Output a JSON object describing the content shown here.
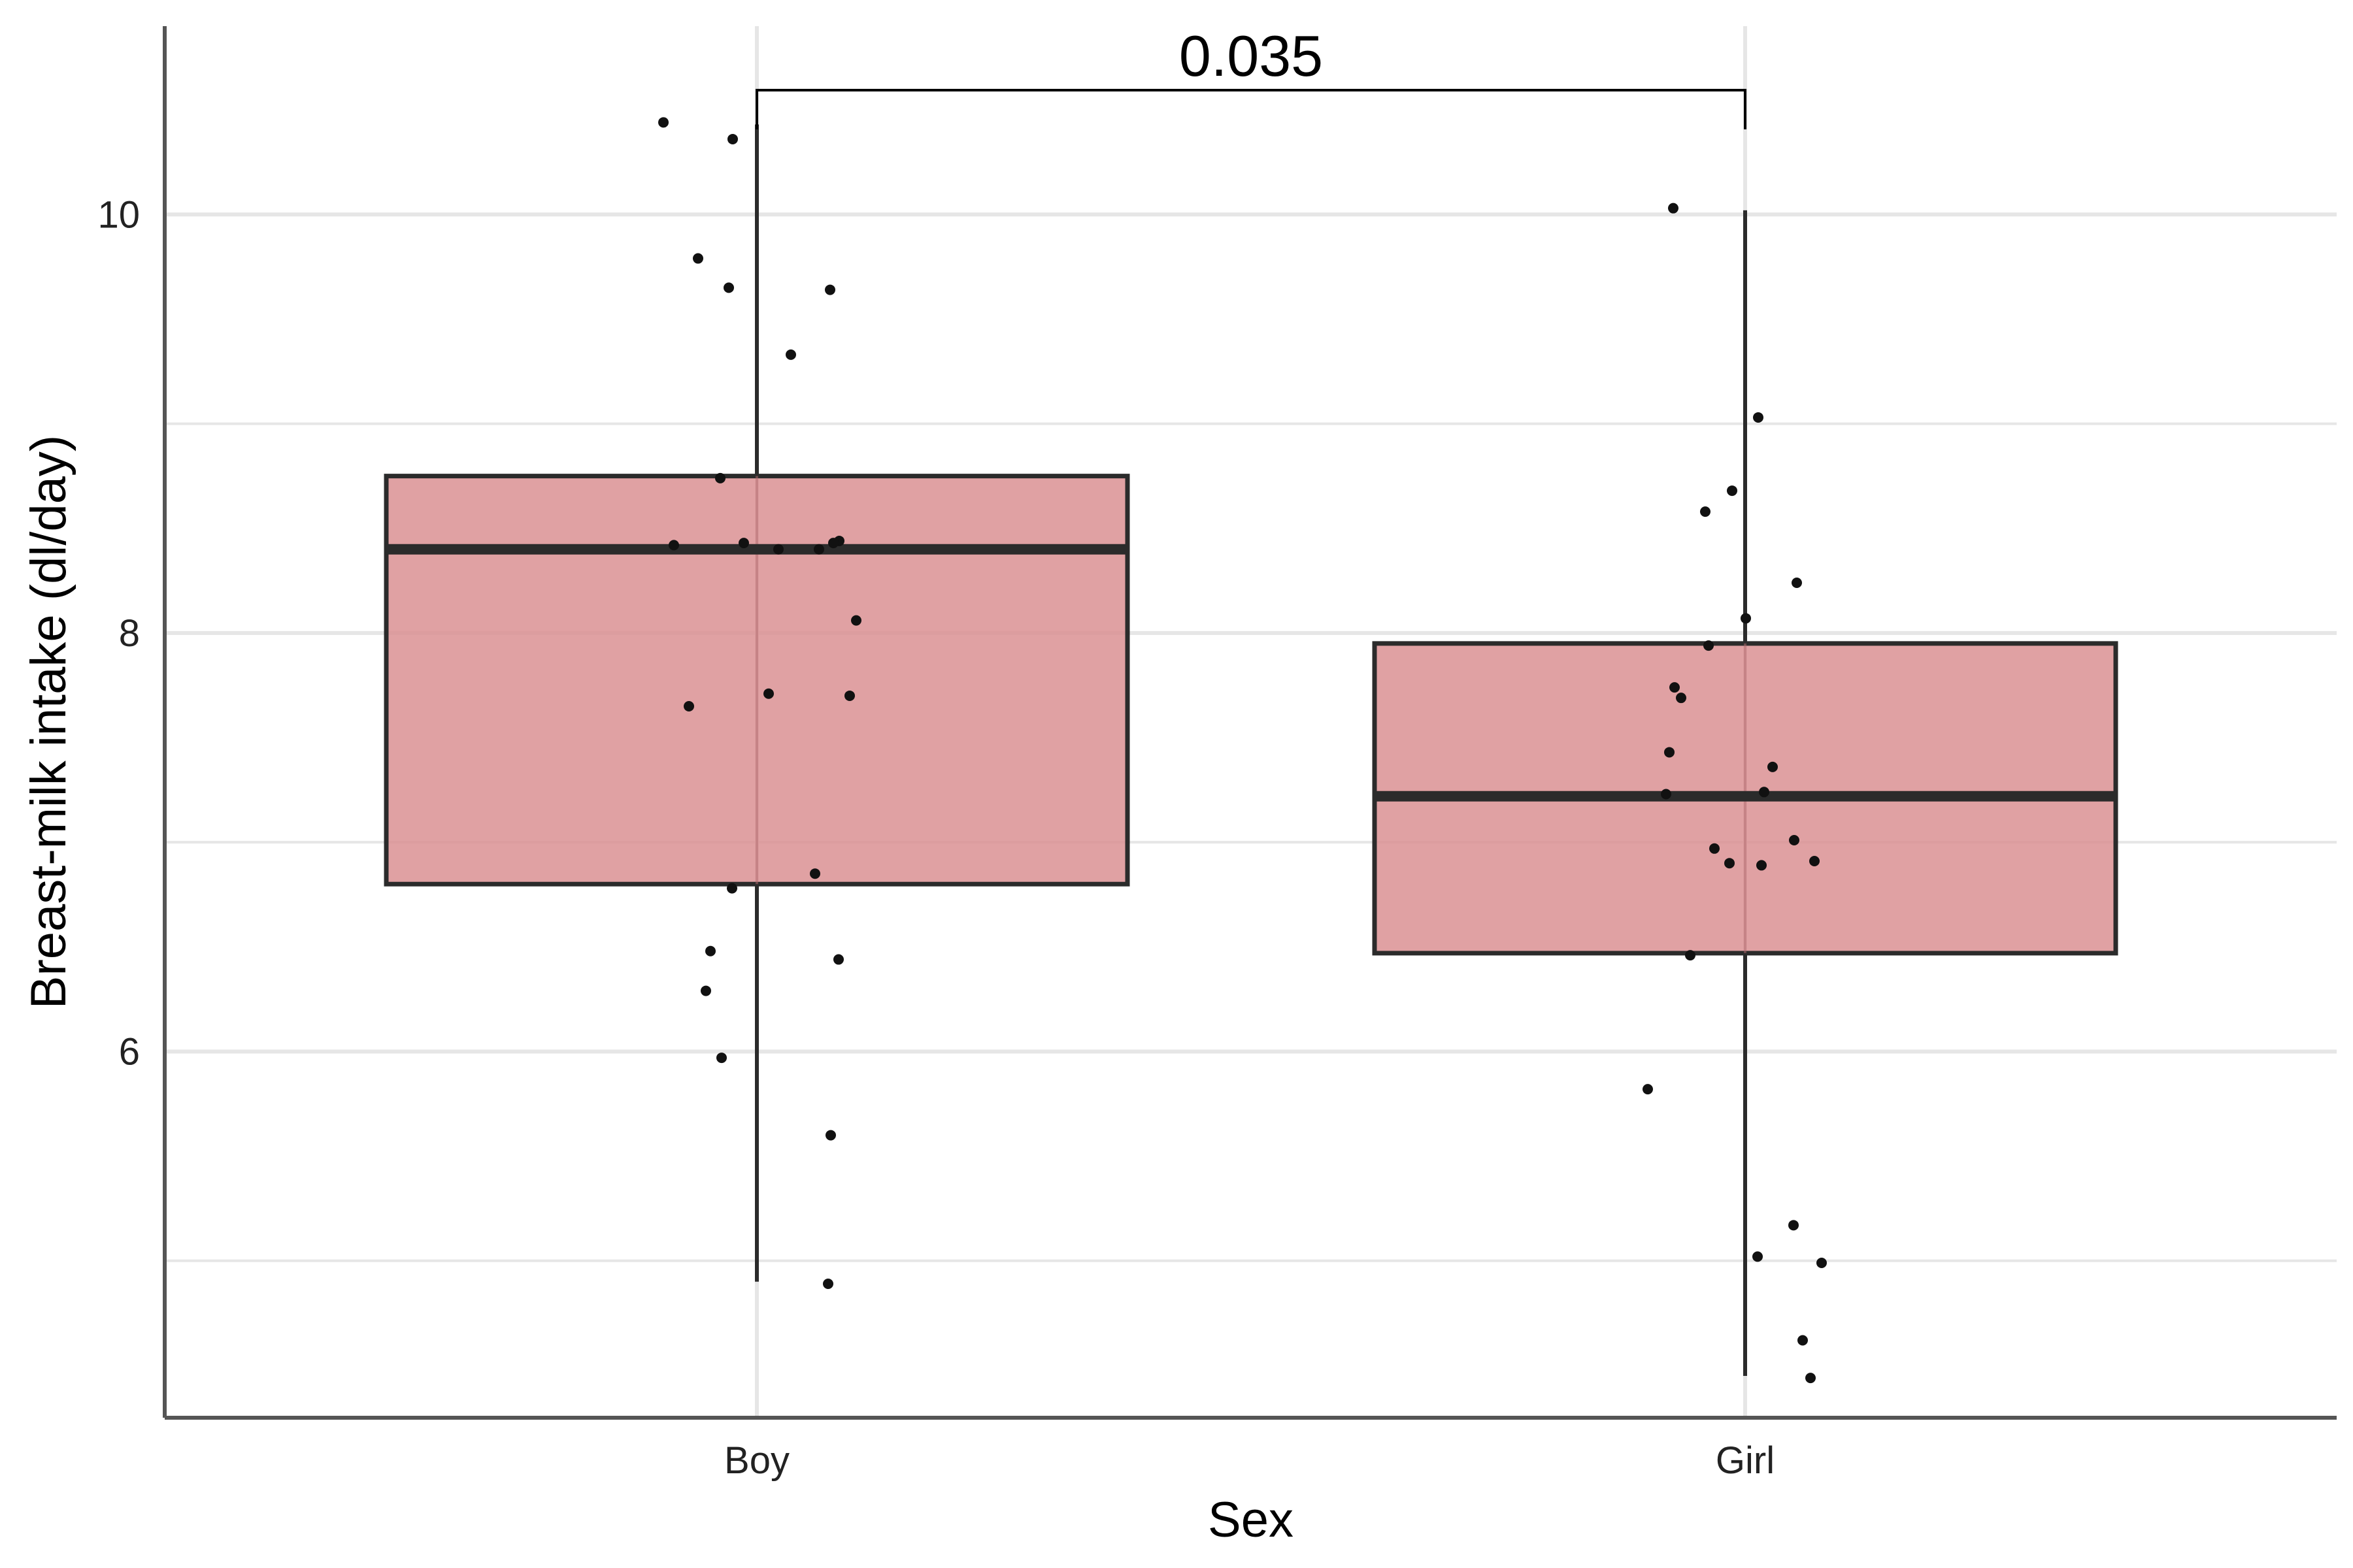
{
  "chart_data": {
    "type": "boxplot",
    "xlabel": "Sex",
    "ylabel": "Breast-milk intake (dl/day)",
    "categories": [
      "Boy",
      "Girl"
    ],
    "ylim": [
      4.25,
      10.9
    ],
    "y_major_ticks": [
      6,
      8,
      10
    ],
    "y_minor_ticks": [
      5,
      7,
      9
    ],
    "grid": true,
    "colors": {
      "box_fill": "#d98c8f",
      "box_stroke": "#2b2b2b",
      "point": "#111111",
      "grid": "#e6e6e6",
      "axis": "#555555"
    },
    "boxes": [
      {
        "category": "Boy",
        "lower_whisker": 4.9,
        "q1": 6.8,
        "median": 8.4,
        "q3": 8.75,
        "upper_whisker": 10.43
      },
      {
        "category": "Girl",
        "lower_whisker": 4.45,
        "q1": 6.47,
        "median": 7.22,
        "q3": 7.95,
        "upper_whisker": 10.02
      }
    ],
    "points": [
      {
        "category": "Boy",
        "values": [
          10.44,
          10.36,
          9.79,
          9.65,
          9.64,
          9.33,
          8.74,
          8.42,
          8.43,
          8.4,
          8.4,
          8.44,
          8.43,
          8.06,
          7.71,
          7.65,
          7.7,
          6.85,
          6.78,
          6.48,
          6.44,
          6.29,
          5.97,
          5.6,
          4.89
        ]
      },
      {
        "category": "Girl",
        "values": [
          10.03,
          9.03,
          8.68,
          8.58,
          8.24,
          8.07,
          7.94,
          7.74,
          7.69,
          7.43,
          7.36,
          7.24,
          7.23,
          7.01,
          6.97,
          6.9,
          6.91,
          6.89,
          6.46,
          5.82,
          5.17,
          5.02,
          4.99,
          4.62,
          4.44
        ]
      }
    ],
    "annotation": {
      "from": "Boy",
      "to": "Girl",
      "label": "0.035"
    }
  }
}
